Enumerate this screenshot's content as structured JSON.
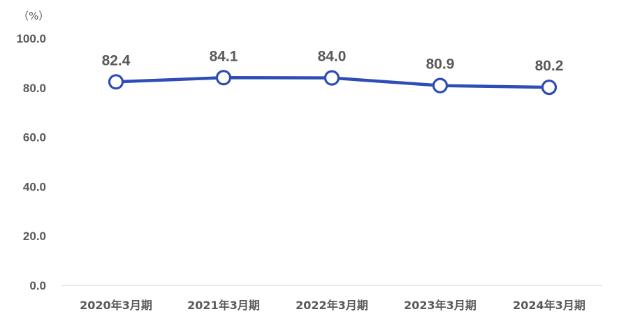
{
  "chart_data": {
    "type": "line",
    "unit_label": "（%）",
    "categories": [
      "2020年3月期",
      "2021年3月期",
      "2022年3月期",
      "2023年3月期",
      "2024年3月期"
    ],
    "values": [
      82.4,
      84.1,
      84.0,
      80.9,
      80.2
    ],
    "data_labels": [
      "82.4",
      "84.1",
      "84.0",
      "80.9",
      "80.2"
    ],
    "y_ticks": [
      "0.0",
      "20.0",
      "40.0",
      "60.0",
      "80.0",
      "100.0"
    ],
    "ylim": [
      0,
      100
    ],
    "grid": false,
    "legend": "none",
    "line_color": "#2E4DB5",
    "marker_fill": "#ffffff",
    "text_color": "#595959",
    "axis_color": "#D9D9D9"
  }
}
